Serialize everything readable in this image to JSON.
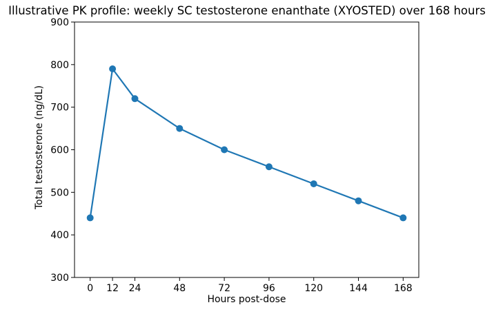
{
  "chart_data": {
    "type": "line",
    "title": "Illustrative PK profile: weekly SC testosterone enanthate (XYOSTED) over 168 hours",
    "xlabel": "Hours post-dose",
    "ylabel": "Total testosterone (ng/dL)",
    "x": [
      0,
      12,
      24,
      48,
      72,
      96,
      120,
      144,
      168
    ],
    "series": [
      {
        "name": "total-testosterone",
        "values": [
          440,
          790,
          720,
          650,
          600,
          560,
          520,
          480,
          440
        ]
      }
    ],
    "xticks": [
      0,
      12,
      24,
      48,
      72,
      96,
      120,
      144,
      168
    ],
    "yticks": [
      300,
      400,
      500,
      600,
      700,
      800,
      900
    ],
    "ylim": [
      300,
      900
    ],
    "xlim_data": [
      0,
      168
    ],
    "grid": false,
    "legend": null,
    "marker": "o",
    "line_color": "#1f77b4",
    "text_color": "#000000",
    "background_color": "#ffffff"
  }
}
